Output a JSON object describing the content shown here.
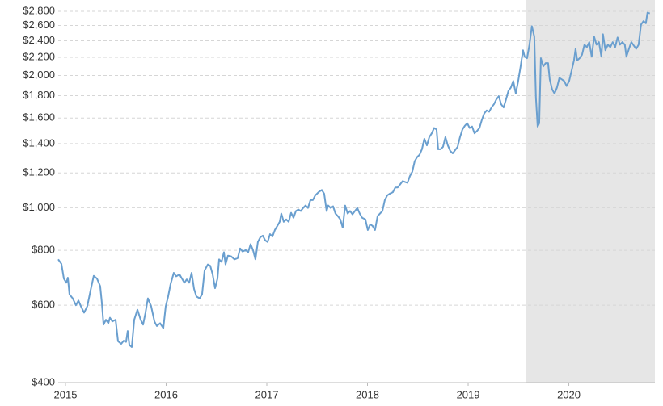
{
  "chart_data": {
    "type": "line",
    "log_y": true,
    "grid": true,
    "shade_from": 2019.57,
    "shade_color": "#e6e6e6",
    "xlim": [
      2014.928,
      2020.855
    ],
    "xticks": [
      2015,
      2016,
      2017,
      2018,
      2019,
      2020
    ],
    "ylim": [
      400,
      2800
    ],
    "yticks": [
      {
        "value": 400,
        "label": "$400"
      },
      {
        "value": 600,
        "label": "$600"
      },
      {
        "value": 800,
        "label": "$800"
      },
      {
        "value": 1000,
        "label": "$1,000"
      },
      {
        "value": 1200,
        "label": "$1,200"
      },
      {
        "value": 1400,
        "label": "$1,400"
      },
      {
        "value": 1600,
        "label": "$1,600"
      },
      {
        "value": 1800,
        "label": "$1,800"
      },
      {
        "value": 2000,
        "label": "$2,000"
      },
      {
        "value": 2200,
        "label": "$2,200"
      },
      {
        "value": 2400,
        "label": "$2,400"
      },
      {
        "value": 2600,
        "label": "$2,600"
      },
      {
        "value": 2800,
        "label": "$2,800"
      }
    ],
    "x": [
      2014.928,
      2014.96,
      2014.984,
      2015.008,
      2015.024,
      2015.04,
      2015.072,
      2015.104,
      2015.129,
      2015.153,
      2015.185,
      2015.217,
      2015.249,
      2015.281,
      2015.313,
      2015.345,
      2015.361,
      2015.378,
      2015.402,
      2015.426,
      2015.442,
      2015.466,
      2015.498,
      2015.522,
      2015.554,
      2015.578,
      2015.602,
      2015.618,
      2015.635,
      2015.659,
      2015.683,
      2015.715,
      2015.747,
      2015.771,
      2015.795,
      2015.819,
      2015.851,
      2015.884,
      2015.908,
      2015.94,
      2015.972,
      2015.996,
      2016.02,
      2016.044,
      2016.076,
      2016.1,
      2016.133,
      2016.157,
      2016.181,
      2016.205,
      2016.229,
      2016.253,
      2016.277,
      2016.301,
      2016.333,
      2016.357,
      2016.382,
      2016.414,
      2016.438,
      2016.462,
      2016.486,
      2016.51,
      2016.526,
      2016.55,
      2016.574,
      2016.59,
      2016.614,
      2016.646,
      2016.679,
      2016.711,
      2016.735,
      2016.759,
      2016.791,
      2016.815,
      2016.839,
      2016.863,
      2016.887,
      2016.911,
      2016.936,
      2016.96,
      2016.984,
      2017.008,
      2017.032,
      2017.056,
      2017.08,
      2017.104,
      2017.128,
      2017.144,
      2017.168,
      2017.193,
      2017.217,
      2017.241,
      2017.265,
      2017.289,
      2017.313,
      2017.337,
      2017.361,
      2017.385,
      2017.409,
      2017.433,
      2017.457,
      2017.481,
      2017.514,
      2017.546,
      2017.57,
      2017.594,
      2017.61,
      2017.634,
      2017.658,
      2017.682,
      2017.706,
      2017.73,
      2017.754,
      2017.778,
      2017.803,
      2017.827,
      2017.851,
      2017.875,
      2017.899,
      2017.923,
      2017.947,
      2017.979,
      2018.003,
      2018.027,
      2018.051,
      2018.075,
      2018.1,
      2018.124,
      2018.148,
      2018.172,
      2018.196,
      2018.22,
      2018.252,
      2018.276,
      2018.3,
      2018.324,
      2018.349,
      2018.373,
      2018.397,
      2018.421,
      2018.445,
      2018.469,
      2018.493,
      2018.517,
      2018.541,
      2018.565,
      2018.59,
      2018.614,
      2018.638,
      2018.662,
      2018.686,
      2018.702,
      2018.726,
      2018.75,
      2018.774,
      2018.798,
      2018.822,
      2018.847,
      2018.871,
      2018.895,
      2018.919,
      2018.943,
      2018.967,
      2018.991,
      2019.015,
      2019.039,
      2019.063,
      2019.087,
      2019.112,
      2019.136,
      2019.16,
      2019.184,
      2019.208,
      2019.232,
      2019.256,
      2019.28,
      2019.304,
      2019.328,
      2019.352,
      2019.376,
      2019.4,
      2019.424,
      2019.448,
      2019.473,
      2019.497,
      2019.521,
      2019.545,
      2019.561,
      2019.585,
      2019.609,
      2019.633,
      2019.657,
      2019.673,
      2019.69,
      2019.706,
      2019.722,
      2019.746,
      2019.77,
      2019.794,
      2019.81,
      2019.834,
      2019.858,
      2019.882,
      2019.906,
      2019.93,
      2019.954,
      2019.978,
      2020.003,
      2020.027,
      2020.051,
      2020.067,
      2020.083,
      2020.107,
      2020.131,
      2020.155,
      2020.179,
      2020.203,
      2020.227,
      2020.251,
      2020.275,
      2020.299,
      2020.323,
      2020.339,
      2020.363,
      2020.388,
      2020.412,
      2020.436,
      2020.46,
      2020.484,
      2020.508,
      2020.532,
      2020.556,
      2020.572,
      2020.597,
      2020.621,
      2020.645,
      2020.669,
      2020.693,
      2020.717,
      2020.741,
      2020.765,
      2020.781,
      2020.805
    ],
    "series": [
      {
        "color": "#6a9fcf",
        "values": [
          763,
          745,
          690,
          675,
          693,
          635,
          622,
          600,
          615,
          597,
          577,
          597,
          648,
          700,
          690,
          663,
          609,
          542,
          556,
          546,
          562,
          551,
          556,
          497,
          490,
          498,
          495,
          524,
          487,
          482,
          556,
          586,
          556,
          542,
          577,
          622,
          597,
          551,
          538,
          546,
          532,
          597,
          628,
          670,
          711,
          698,
          705,
          690,
          675,
          687,
          675,
          711,
          654,
          628,
          622,
          635,
          720,
          743,
          738,
          705,
          656,
          690,
          763,
          753,
          792,
          743,
          778,
          775,
          763,
          768,
          808,
          795,
          801,
          792,
          826,
          801,
          763,
          836,
          857,
          864,
          843,
          836,
          871,
          860,
          890,
          909,
          929,
          970,
          929,
          941,
          929,
          974,
          949,
          983,
          991,
          983,
          999,
          1012,
          999,
          1041,
          1041,
          1067,
          1085,
          1098,
          1076,
          983,
          1012,
          999,
          1008,
          970,
          957,
          941,
          901,
          1012,
          970,
          983,
          966,
          983,
          999,
          970,
          949,
          941,
          890,
          917,
          909,
          890,
          957,
          970,
          983,
          1041,
          1067,
          1076,
          1085,
          1112,
          1112,
          1130,
          1150,
          1145,
          1140,
          1180,
          1208,
          1276,
          1304,
          1320,
          1359,
          1436,
          1387,
          1448,
          1477,
          1519,
          1507,
          1359,
          1359,
          1376,
          1448,
          1387,
          1347,
          1330,
          1353,
          1376,
          1448,
          1507,
          1537,
          1557,
          1519,
          1531,
          1477,
          1495,
          1519,
          1585,
          1640,
          1666,
          1654,
          1692,
          1720,
          1764,
          1795,
          1720,
          1692,
          1764,
          1846,
          1877,
          1943,
          1820,
          1943,
          2099,
          2283,
          2207,
          2190,
          2351,
          2590,
          2452,
          1780,
          1530,
          1557,
          2190,
          2099,
          2135,
          2135,
          1960,
          1860,
          1820,
          1877,
          1975,
          1960,
          1943,
          1893,
          1943,
          2050,
          2165,
          2300,
          2165,
          2190,
          2230,
          2351,
          2320,
          2383,
          2207,
          2452,
          2351,
          2383,
          2207,
          2483,
          2283,
          2351,
          2320,
          2383,
          2320,
          2442,
          2351,
          2383,
          2351,
          2207,
          2300,
          2383,
          2340,
          2300,
          2351,
          2610,
          2660,
          2630,
          2780,
          2770
        ]
      }
    ]
  }
}
